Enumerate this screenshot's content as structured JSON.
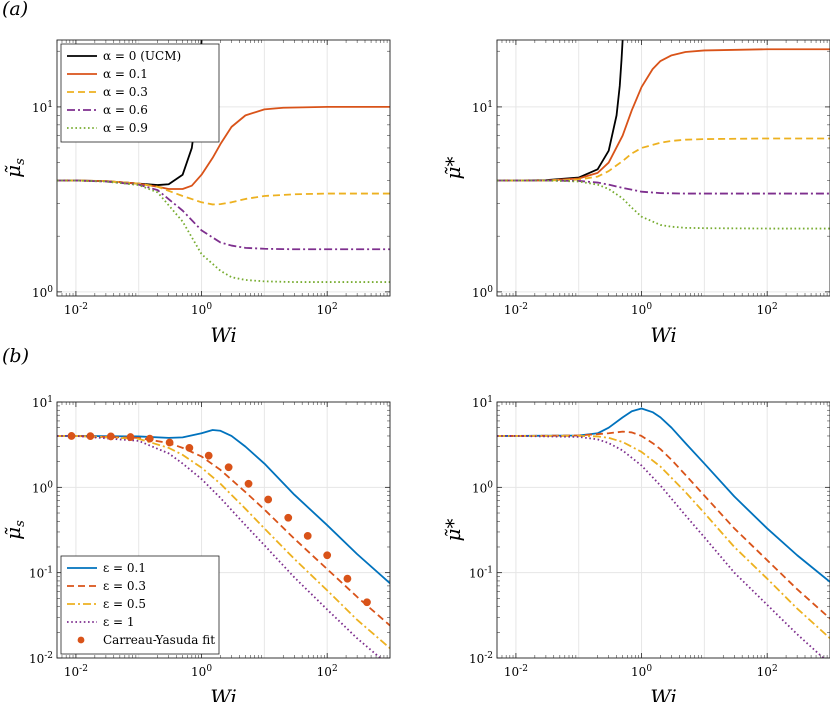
{
  "panel_labels": {
    "a": "(a)",
    "b": "(b)"
  },
  "colors": {
    "black": "#000000",
    "orange": "#D95319",
    "gold": "#EDB120",
    "purple": "#7E2F8E",
    "green": "#77AC30",
    "blue": "#0072BD"
  },
  "chart_data": [
    {
      "id": "a-left",
      "type": "line",
      "xscale": "log",
      "yscale": "log",
      "xlim": [
        0.005,
        1000
      ],
      "ylim": [
        0.95,
        23
      ],
      "xlabel": "Wi",
      "ylabel": "μ̃_s",
      "xticks": [
        {
          "value": 0.01,
          "label": "10^-2"
        },
        {
          "value": 1,
          "label": "10^0"
        },
        {
          "value": 100,
          "label": "10^2"
        }
      ],
      "yticks": [
        {
          "value": 1,
          "label": "10^0"
        },
        {
          "value": 10,
          "label": "10^1"
        }
      ],
      "legend": {
        "position": "top-left"
      },
      "series": [
        {
          "name": "α = 0 (UCM)",
          "color": "#000000",
          "dash": "solid",
          "x": [
            0.005,
            0.01,
            0.03,
            0.1,
            0.2,
            0.3,
            0.5,
            0.7,
            0.85,
            0.95,
            1.0
          ],
          "y": [
            4.0,
            4.0,
            3.97,
            3.85,
            3.78,
            3.82,
            4.3,
            6.0,
            10.0,
            16.0,
            23.0
          ]
        },
        {
          "name": "α = 0.1",
          "color": "#D95319",
          "dash": "solid",
          "x": [
            0.005,
            0.01,
            0.03,
            0.1,
            0.2,
            0.3,
            0.5,
            0.7,
            1,
            1.5,
            2,
            3,
            5,
            10,
            20,
            100,
            1000
          ],
          "y": [
            4.0,
            4.0,
            3.97,
            3.85,
            3.7,
            3.6,
            3.6,
            3.75,
            4.3,
            5.3,
            6.3,
            7.8,
            9.0,
            9.7,
            9.9,
            10.0,
            10.0
          ]
        },
        {
          "name": "α = 0.3",
          "color": "#EDB120",
          "dash": "dash",
          "x": [
            0.005,
            0.01,
            0.03,
            0.1,
            0.2,
            0.5,
            1,
            1.5,
            2,
            3,
            5,
            10,
            30,
            100,
            1000
          ],
          "y": [
            4.0,
            4.0,
            3.97,
            3.85,
            3.7,
            3.3,
            3.05,
            2.97,
            2.98,
            3.05,
            3.18,
            3.3,
            3.37,
            3.4,
            3.4
          ]
        },
        {
          "name": "α = 0.6",
          "color": "#7E2F8E",
          "dash": "dashdot",
          "x": [
            0.005,
            0.01,
            0.03,
            0.1,
            0.2,
            0.5,
            1,
            2,
            3,
            5,
            10,
            30,
            100,
            1000
          ],
          "y": [
            4.0,
            4.0,
            3.95,
            3.8,
            3.55,
            2.75,
            2.15,
            1.85,
            1.78,
            1.73,
            1.71,
            1.7,
            1.7,
            1.7
          ]
        },
        {
          "name": "α = 0.9",
          "color": "#77AC30",
          "dash": "dot",
          "x": [
            0.005,
            0.01,
            0.03,
            0.1,
            0.2,
            0.5,
            1,
            2,
            3,
            5,
            10,
            30,
            100,
            1000
          ],
          "y": [
            4.0,
            4.0,
            3.95,
            3.78,
            3.45,
            2.4,
            1.6,
            1.3,
            1.2,
            1.16,
            1.14,
            1.13,
            1.13,
            1.13
          ]
        }
      ]
    },
    {
      "id": "a-right",
      "type": "line",
      "xscale": "log",
      "yscale": "log",
      "xlim": [
        0.005,
        1000
      ],
      "ylim": [
        0.95,
        23
      ],
      "xlabel": "Wi",
      "ylabel": "μ̃*",
      "xticks": [
        {
          "value": 0.01,
          "label": "10^-2"
        },
        {
          "value": 1,
          "label": "10^0"
        },
        {
          "value": 100,
          "label": "10^2"
        }
      ],
      "yticks": [
        {
          "value": 1,
          "label": "10^0"
        },
        {
          "value": 10,
          "label": "10^1"
        }
      ],
      "series": [
        {
          "name": "α = 0 (UCM)",
          "color": "#000000",
          "dash": "solid",
          "x": [
            0.005,
            0.01,
            0.03,
            0.1,
            0.2,
            0.3,
            0.4,
            0.45,
            0.48,
            0.5
          ],
          "y": [
            4.0,
            4.0,
            4.02,
            4.15,
            4.6,
            5.8,
            9.0,
            13.0,
            18.0,
            23.0
          ]
        },
        {
          "name": "α = 0.1",
          "color": "#D95319",
          "dash": "solid",
          "x": [
            0.005,
            0.01,
            0.03,
            0.1,
            0.2,
            0.3,
            0.5,
            0.7,
            1,
            1.5,
            2,
            3,
            5,
            10,
            100,
            1000
          ],
          "y": [
            4.0,
            4.0,
            4.0,
            4.1,
            4.4,
            5.0,
            7.0,
            9.6,
            12.8,
            16.0,
            17.7,
            19.0,
            19.8,
            20.2,
            20.5,
            20.5
          ]
        },
        {
          "name": "α = 0.3",
          "color": "#EDB120",
          "dash": "dash",
          "x": [
            0.005,
            0.01,
            0.03,
            0.1,
            0.2,
            0.3,
            0.5,
            0.7,
            1,
            2,
            3,
            5,
            10,
            100,
            1000
          ],
          "y": [
            4.0,
            4.0,
            4.0,
            4.05,
            4.2,
            4.5,
            5.1,
            5.6,
            6.0,
            6.4,
            6.55,
            6.65,
            6.7,
            6.75,
            6.75
          ]
        },
        {
          "name": "α = 0.6",
          "color": "#7E2F8E",
          "dash": "dashdot",
          "x": [
            0.005,
            0.01,
            0.03,
            0.1,
            0.2,
            0.3,
            0.5,
            1,
            2,
            5,
            10,
            100,
            1000
          ],
          "y": [
            4.0,
            4.0,
            4.0,
            3.98,
            3.9,
            3.8,
            3.65,
            3.48,
            3.42,
            3.4,
            3.4,
            3.4,
            3.4
          ]
        },
        {
          "name": "α = 0.9",
          "color": "#77AC30",
          "dash": "dot",
          "x": [
            0.005,
            0.01,
            0.03,
            0.1,
            0.2,
            0.3,
            0.5,
            0.7,
            1,
            2,
            3,
            5,
            10,
            100,
            1000
          ],
          "y": [
            4.0,
            4.0,
            4.0,
            3.95,
            3.8,
            3.6,
            3.2,
            2.85,
            2.55,
            2.3,
            2.25,
            2.22,
            2.21,
            2.2,
            2.2
          ]
        }
      ]
    },
    {
      "id": "b-left",
      "type": "line",
      "xscale": "log",
      "yscale": "log",
      "xlim": [
        0.005,
        1000
      ],
      "ylim": [
        0.01,
        10
      ],
      "xlabel": "Wi",
      "ylabel": "μ̃_s",
      "xticks": [
        {
          "value": 0.01,
          "label": "10^-2"
        },
        {
          "value": 1,
          "label": "10^0"
        },
        {
          "value": 100,
          "label": "10^2"
        }
      ],
      "yticks": [
        {
          "value": 0.01,
          "label": "10^-2"
        },
        {
          "value": 0.1,
          "label": "10^-1"
        },
        {
          "value": 1,
          "label": "10^0"
        },
        {
          "value": 10,
          "label": "10^1"
        }
      ],
      "legend": {
        "position": "bottom-left"
      },
      "series": [
        {
          "name": "ε = 0.1",
          "color": "#0072BD",
          "dash": "solid",
          "x": [
            0.005,
            0.01,
            0.1,
            0.3,
            0.5,
            1,
            1.5,
            2,
            3,
            5,
            10,
            30,
            100,
            300,
            1000
          ],
          "y": [
            4.0,
            4.0,
            3.95,
            3.8,
            3.85,
            4.3,
            4.7,
            4.6,
            4.0,
            3.0,
            1.9,
            0.82,
            0.36,
            0.165,
            0.075
          ]
        },
        {
          "name": "ε = 0.3",
          "color": "#D95319",
          "dash": "dash",
          "x": [
            0.005,
            0.01,
            0.1,
            0.3,
            0.5,
            1,
            2,
            5,
            10,
            30,
            100,
            300,
            1000
          ],
          "y": [
            4.0,
            4.0,
            3.8,
            3.3,
            2.9,
            2.3,
            1.6,
            0.88,
            0.55,
            0.25,
            0.11,
            0.052,
            0.024
          ]
        },
        {
          "name": "ε = 0.5",
          "color": "#EDB120",
          "dash": "dashdot",
          "x": [
            0.005,
            0.01,
            0.1,
            0.3,
            0.5,
            1,
            2,
            5,
            10,
            30,
            100,
            300,
            1000
          ],
          "y": [
            4.0,
            4.0,
            3.7,
            2.9,
            2.4,
            1.7,
            1.1,
            0.56,
            0.33,
            0.145,
            0.062,
            0.028,
            0.013
          ]
        },
        {
          "name": "ε = 1",
          "color": "#7E2F8E",
          "dash": "dot",
          "x": [
            0.005,
            0.01,
            0.1,
            0.3,
            0.5,
            1,
            2,
            5,
            10,
            30,
            100,
            300,
            1000
          ],
          "y": [
            4.0,
            4.0,
            3.5,
            2.5,
            1.9,
            1.25,
            0.75,
            0.36,
            0.21,
            0.088,
            0.037,
            0.017,
            0.008
          ]
        },
        {
          "name": "Carreau-Yasuda fit",
          "color": "#D95319",
          "dash": "none",
          "marker": "circle",
          "x": [
            0.0085,
            0.017,
            0.036,
            0.074,
            0.15,
            0.31,
            0.64,
            1.3,
            2.7,
            5.6,
            11.5,
            24,
            49,
            100,
            210,
            430
          ],
          "y": [
            4.0,
            3.98,
            3.95,
            3.88,
            3.72,
            3.35,
            2.9,
            2.35,
            1.72,
            1.1,
            0.72,
            0.44,
            0.27,
            0.16,
            0.085,
            0.045
          ]
        }
      ]
    },
    {
      "id": "b-right",
      "type": "line",
      "xscale": "log",
      "yscale": "log",
      "xlim": [
        0.005,
        1000
      ],
      "ylim": [
        0.01,
        10
      ],
      "xlabel": "Wi",
      "ylabel": "μ̃*",
      "xticks": [
        {
          "value": 0.01,
          "label": "10^-2"
        },
        {
          "value": 1,
          "label": "10^0"
        },
        {
          "value": 100,
          "label": "10^2"
        }
      ],
      "yticks": [
        {
          "value": 0.01,
          "label": "10^-2"
        },
        {
          "value": 0.1,
          "label": "10^-1"
        },
        {
          "value": 1,
          "label": "10^0"
        },
        {
          "value": 10,
          "label": "10^1"
        }
      ],
      "series": [
        {
          "name": "ε = 0.1",
          "color": "#0072BD",
          "dash": "solid",
          "x": [
            0.005,
            0.01,
            0.1,
            0.2,
            0.3,
            0.5,
            0.7,
            1,
            1.5,
            2,
            3,
            5,
            10,
            30,
            100,
            300,
            1000
          ],
          "y": [
            4.0,
            4.0,
            4.05,
            4.3,
            5.0,
            6.6,
            7.8,
            8.4,
            7.6,
            6.6,
            5.0,
            3.3,
            1.9,
            0.78,
            0.33,
            0.16,
            0.078
          ]
        },
        {
          "name": "ε = 0.3",
          "color": "#D95319",
          "dash": "dash",
          "x": [
            0.005,
            0.01,
            0.1,
            0.3,
            0.5,
            0.7,
            1,
            1.5,
            2,
            3,
            5,
            10,
            30,
            100,
            300,
            1000
          ],
          "y": [
            4.0,
            4.0,
            4.05,
            4.3,
            4.5,
            4.4,
            4.0,
            3.3,
            2.8,
            2.1,
            1.4,
            0.8,
            0.33,
            0.14,
            0.064,
            0.029
          ]
        },
        {
          "name": "ε = 0.5",
          "color": "#EDB120",
          "dash": "dashdot",
          "x": [
            0.005,
            0.01,
            0.1,
            0.2,
            0.3,
            0.5,
            1,
            2,
            5,
            10,
            30,
            100,
            300,
            1000
          ],
          "y": [
            4.0,
            4.0,
            4.0,
            3.95,
            3.8,
            3.4,
            2.6,
            1.75,
            0.88,
            0.5,
            0.2,
            0.085,
            0.038,
            0.017
          ]
        },
        {
          "name": "ε = 1",
          "color": "#7E2F8E",
          "dash": "dot",
          "x": [
            0.005,
            0.01,
            0.1,
            0.2,
            0.3,
            0.5,
            1,
            2,
            5,
            10,
            30,
            100,
            300,
            1000
          ],
          "y": [
            4.0,
            4.0,
            3.9,
            3.65,
            3.3,
            2.7,
            1.8,
            1.05,
            0.47,
            0.26,
            0.1,
            0.042,
            0.019,
            0.0085
          ]
        }
      ]
    }
  ]
}
